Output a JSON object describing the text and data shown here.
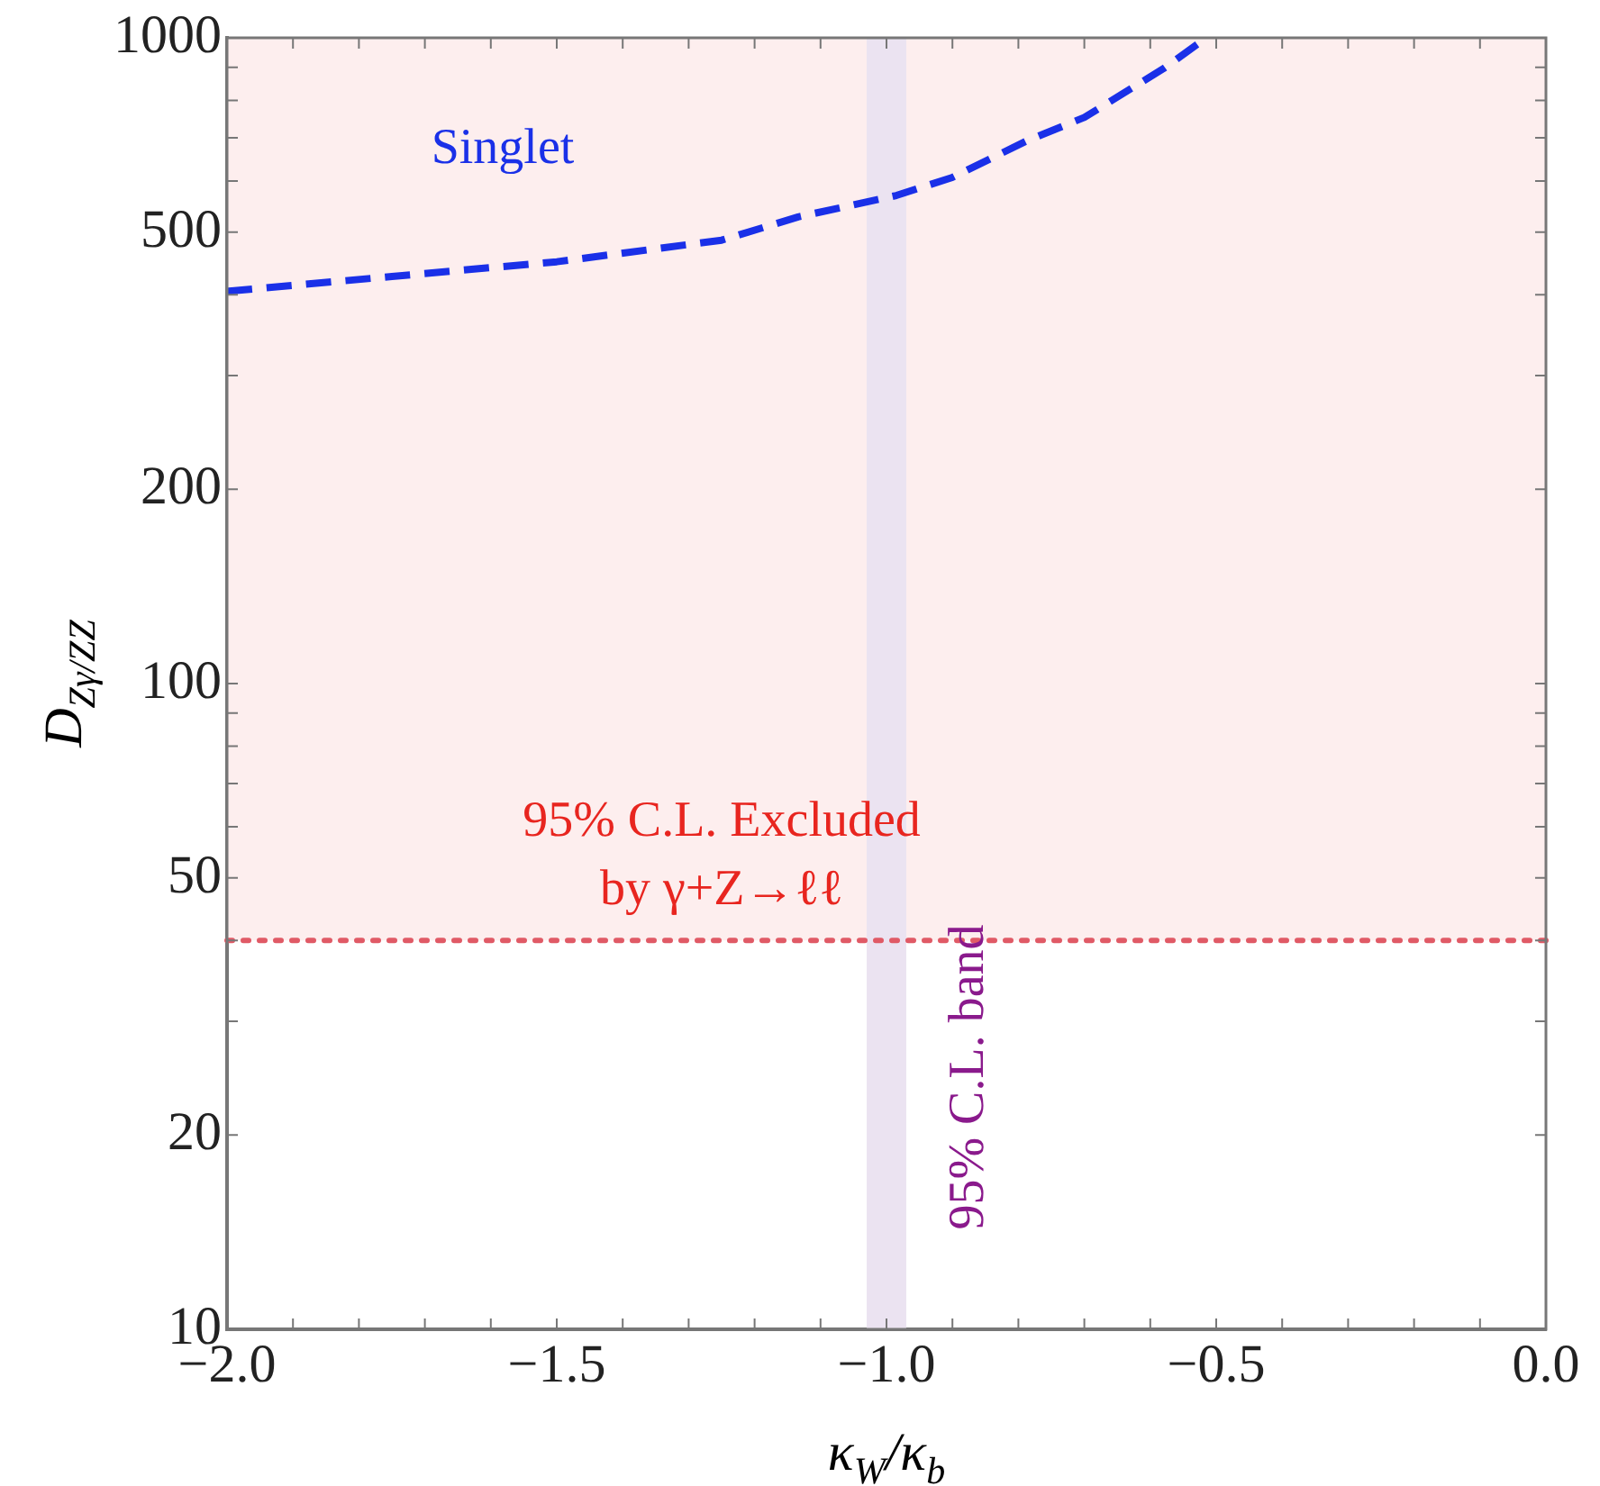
{
  "chart_data": {
    "type": "line",
    "xlabel": "κ$_{W}$/κ$_{b}$",
    "ylabel": "D$_{Zγ/ZZ}$",
    "log": "y",
    "grid": false,
    "legend": false,
    "marker": "none",
    "xlim": [
      -2,
      0
    ],
    "ylim": [
      10,
      1000
    ],
    "xticks": [
      {
        "value": -2,
        "label": "−2.0"
      },
      {
        "value": -1.9,
        "label": null
      },
      {
        "value": -1.8,
        "label": null
      },
      {
        "value": -1.7,
        "label": null
      },
      {
        "value": -1.6,
        "label": null
      },
      {
        "value": -1.5,
        "label": "−1.5"
      },
      {
        "value": -1.4,
        "label": null
      },
      {
        "value": -1.3,
        "label": null
      },
      {
        "value": -1.2,
        "label": null
      },
      {
        "value": -1.1,
        "label": null
      },
      {
        "value": -1,
        "label": "−1.0"
      },
      {
        "value": -0.9,
        "label": null
      },
      {
        "value": -0.8,
        "label": null
      },
      {
        "value": -0.7,
        "label": null
      },
      {
        "value": -0.6,
        "label": null
      },
      {
        "value": -0.5,
        "label": "−0.5"
      },
      {
        "value": -0.4,
        "label": null
      },
      {
        "value": -0.3,
        "label": null
      },
      {
        "value": -0.2,
        "label": null
      },
      {
        "value": -0.1,
        "label": null
      },
      {
        "value": 0,
        "label": "0.0"
      }
    ],
    "yticks": [
      10,
      20,
      {
        "value": 30,
        "label": null
      },
      {
        "value": 40,
        "label": null
      },
      50,
      {
        "value": 60,
        "label": null
      },
      {
        "value": 70,
        "label": null
      },
      {
        "value": 80,
        "label": null
      },
      {
        "value": 90,
        "label": null
      },
      100,
      200,
      {
        "value": 300,
        "label": null
      },
      {
        "value": 400,
        "label": null
      },
      500,
      {
        "value": 600,
        "label": null
      },
      {
        "value": 700,
        "label": null
      },
      {
        "value": 800,
        "label": null
      },
      {
        "value": 900,
        "label": null
      },
      1000
    ],
    "series": [
      {
        "name": "Singlet",
        "color": "#1a30e8",
        "line_style": "dashed",
        "x": [
          -2,
          -1.75,
          -1.5,
          -1.25,
          -1.134,
          -0.985,
          -0.9,
          -0.788,
          -0.7,
          -0.647,
          -0.58,
          -0.515
        ],
        "values": [
          405,
          427,
          450,
          486,
          528,
          570,
          608,
          692,
          753,
          813,
          896,
          1000
        ]
      }
    ],
    "bands": [
      {
        "axis": "y",
        "from": 40,
        "to": 1000,
        "label": "95% C.L. Excluded by γ+Z→ℓℓ",
        "color": "#fdeeee"
      },
      {
        "axis": "x",
        "from": -1.03,
        "to": -0.97,
        "label": "95% C.L. band",
        "color": "#ebe3f1"
      }
    ],
    "ref_lines": [
      {
        "axis": "y",
        "value": 40,
        "color": "#e05a66",
        "line_style": "dotted"
      }
    ]
  }
}
